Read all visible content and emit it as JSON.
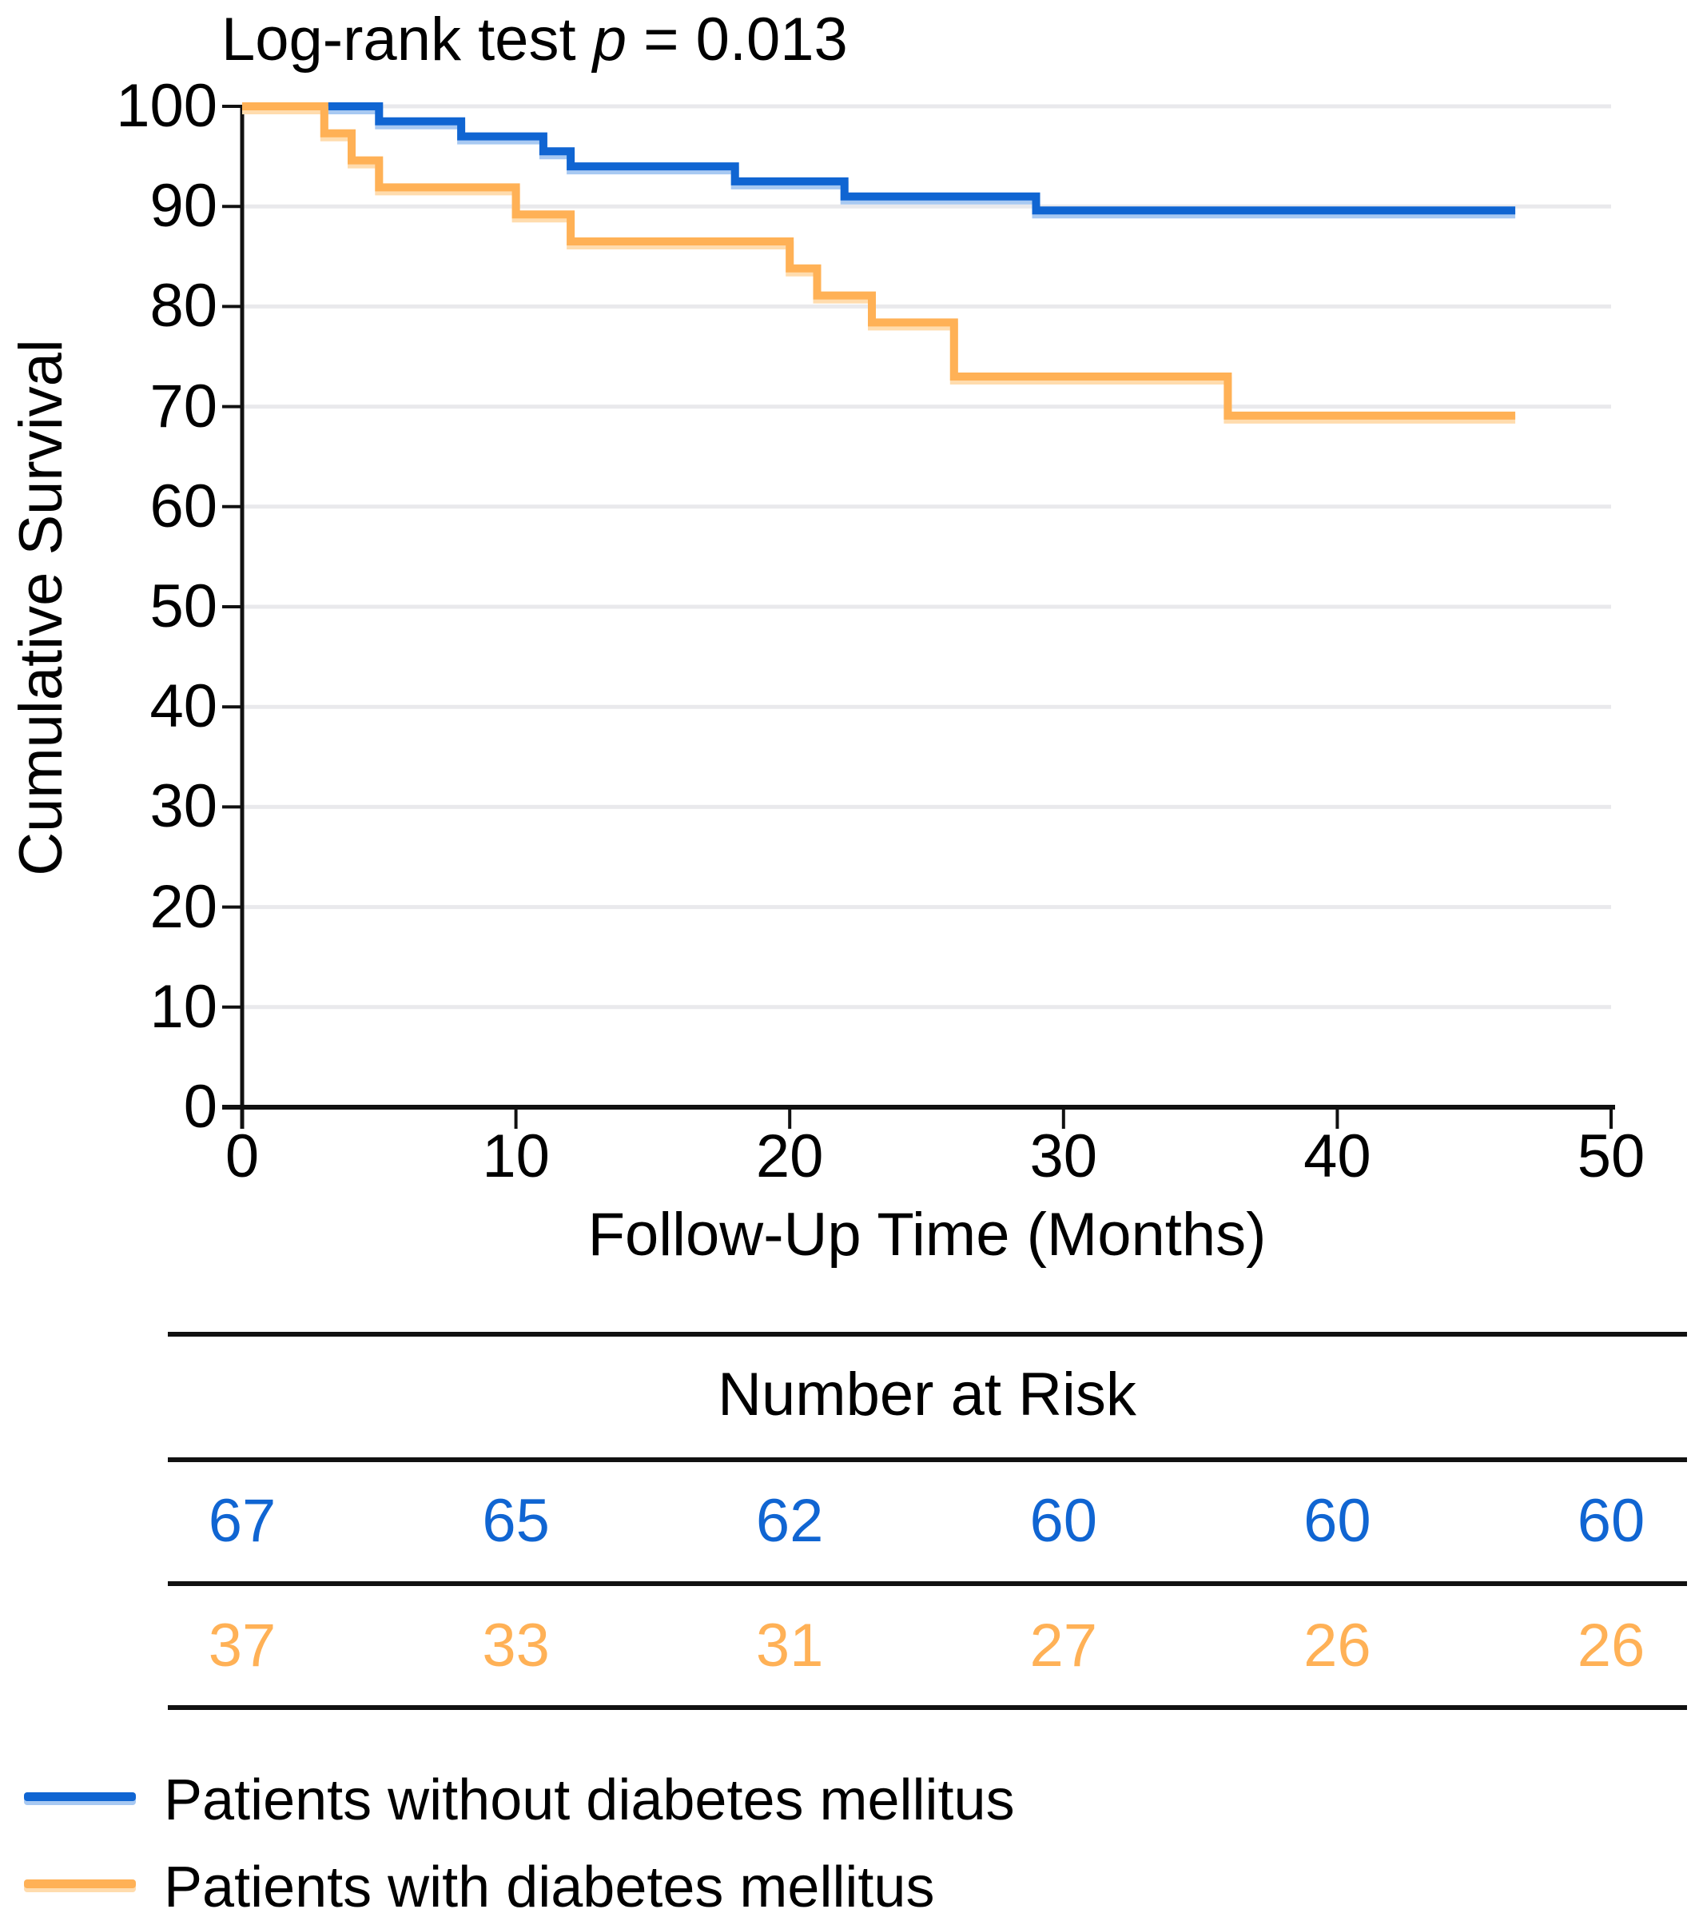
{
  "title": {
    "prefix": "Log-rank test ",
    "stat": "p",
    "suffix": " = 0.013"
  },
  "colors": {
    "curve_no_dm": "#1065D2",
    "curve_no_dm_shadow": "#A8C9F2",
    "curve_dm": "#FFB156",
    "curve_dm_shadow": "#FFDCAE",
    "gridline": "#E9E9EC",
    "axis": "#111111",
    "text": "#000000"
  },
  "chart_data": {
    "type": "line",
    "subtype": "kaplan-meier-step",
    "title": "Log-rank test p = 0.013",
    "xlabel": "Follow-Up Time (Months)",
    "ylabel": "Cumulative Survival",
    "xlim": [
      0,
      50
    ],
    "ylim": [
      0,
      100
    ],
    "xticks": [
      0,
      10,
      20,
      30,
      40,
      50
    ],
    "yticks": [
      0,
      10,
      20,
      30,
      40,
      50,
      60,
      70,
      80,
      90,
      100
    ],
    "grid": "horizontal",
    "legend_position": "bottom-left",
    "series": [
      {
        "name": "Patients without diabetes mellitus",
        "color": "#1065D2",
        "shadow": "#A8C9F2",
        "n_initial": 67,
        "points": [
          [
            0,
            100
          ],
          [
            5,
            98.5
          ],
          [
            8,
            97.0
          ],
          [
            11,
            95.5
          ],
          [
            12,
            94.0
          ],
          [
            18,
            92.5
          ],
          [
            22,
            91.0
          ],
          [
            29,
            89.6
          ],
          [
            46.5,
            89.6
          ]
        ]
      },
      {
        "name": "Patients with diabetes mellitus",
        "color": "#FFB156",
        "shadow": "#FFDCAE",
        "n_initial": 37,
        "points": [
          [
            0,
            100
          ],
          [
            3,
            97.3
          ],
          [
            4,
            94.6
          ],
          [
            5,
            91.9
          ],
          [
            10,
            89.2
          ],
          [
            12,
            86.5
          ],
          [
            20,
            83.8
          ],
          [
            21,
            81.1
          ],
          [
            23,
            78.4
          ],
          [
            26,
            73.0
          ],
          [
            36,
            69.1
          ],
          [
            46.5,
            69.1
          ]
        ]
      }
    ],
    "risk_table": {
      "header": "Number at Risk",
      "times": [
        0,
        10,
        20,
        30,
        40,
        50
      ],
      "rows": [
        {
          "name": "Patients without diabetes mellitus",
          "color": "#1065D2",
          "counts": [
            67,
            65,
            62,
            60,
            60,
            60
          ]
        },
        {
          "name": "Patients with diabetes mellitus",
          "color": "#FFB156",
          "counts": [
            37,
            33,
            31,
            27,
            26,
            26
          ]
        }
      ]
    }
  }
}
